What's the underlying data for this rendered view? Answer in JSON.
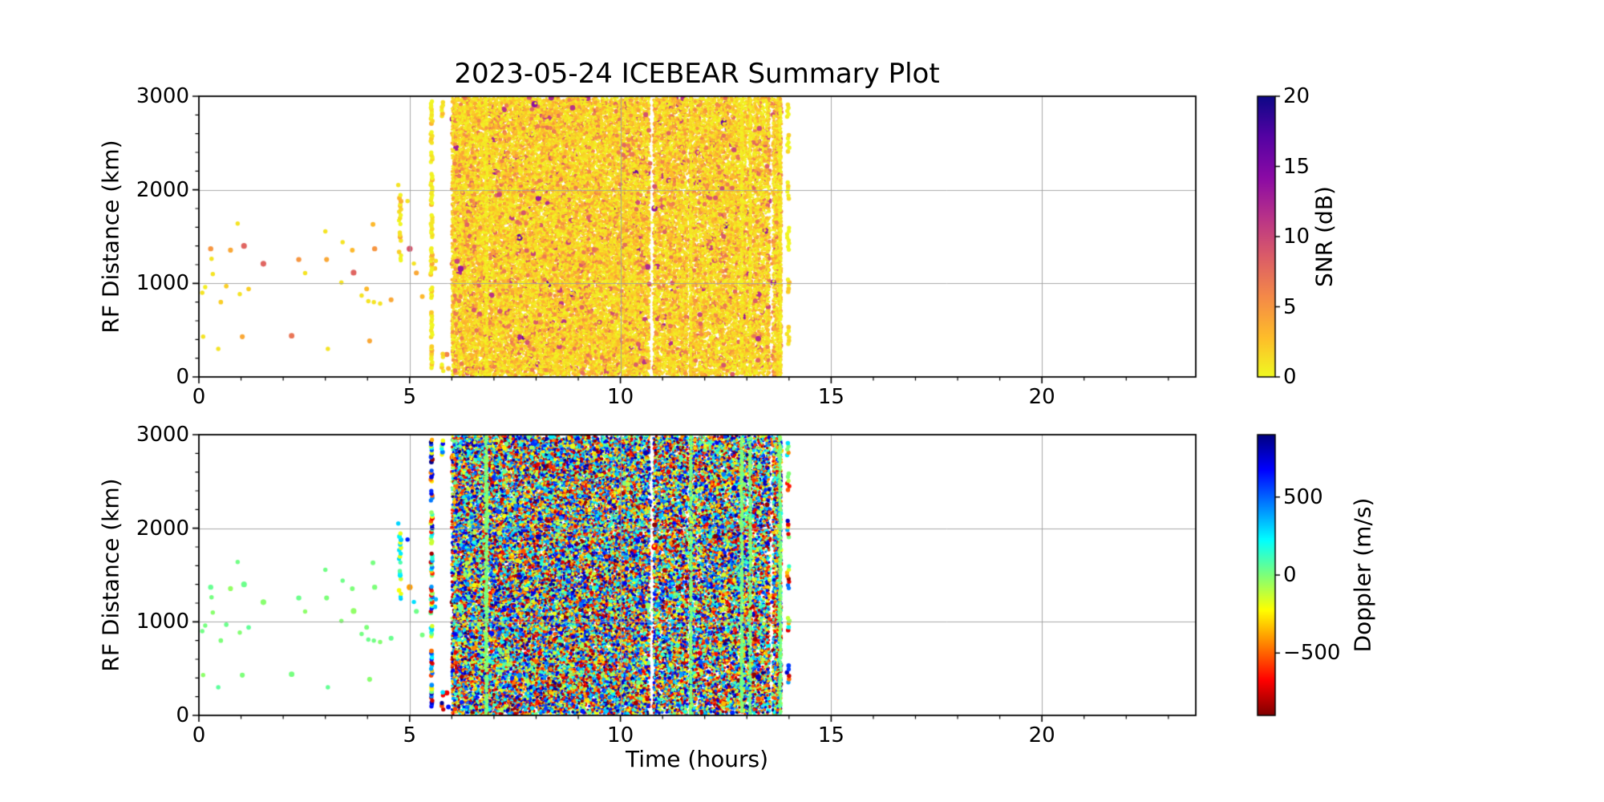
{
  "figure": {
    "background": "#ffffff",
    "grid_color": "#b0b0b0",
    "spine_color": "#000000"
  },
  "chart_data": [
    {
      "id": "snr-panel",
      "type": "scatter",
      "title": "2023-05-24 ICEBEAR Summary Plot",
      "xlabel": "",
      "ylabel": "RF Distance (km)",
      "xlim": [
        0,
        23.65
      ],
      "ylim": [
        0,
        3000
      ],
      "xticks": [
        0,
        5,
        10,
        15,
        20
      ],
      "xtick_labels": [
        "0",
        "5",
        "10",
        "15",
        "20"
      ],
      "yticks": [
        0,
        1000,
        2000,
        3000
      ],
      "ytick_labels": [
        "0",
        "1000",
        "2000",
        "3000"
      ],
      "x_minor_step": 1,
      "y_minor_step": 200,
      "grid": true,
      "legend": "none",
      "color_by": "snr",
      "colorbar": {
        "label": "SNR (dB)",
        "range": [
          0,
          20
        ],
        "ticks": [
          0,
          5,
          10,
          15,
          20
        ],
        "tick_labels": [
          "0",
          "5",
          "10",
          "15",
          "20"
        ],
        "colormap": "plasma_r"
      }
    },
    {
      "id": "doppler-panel",
      "type": "scatter",
      "title": "",
      "xlabel": "Time (hours)",
      "ylabel": "RF Distance (km)",
      "xlim": [
        0,
        23.65
      ],
      "ylim": [
        0,
        3000
      ],
      "xticks": [
        0,
        5,
        10,
        15,
        20
      ],
      "xtick_labels": [
        "0",
        "5",
        "10",
        "15",
        "20"
      ],
      "yticks": [
        0,
        1000,
        2000,
        3000
      ],
      "ytick_labels": [
        "0",
        "1000",
        "2000",
        "3000"
      ],
      "x_minor_step": 1,
      "y_minor_step": 200,
      "grid": true,
      "legend": "none",
      "color_by": "doppler",
      "colorbar": {
        "label": "Doppler (m/s)",
        "range": [
          -900,
          900
        ],
        "ticks": [
          -500,
          0,
          500
        ],
        "tick_labels": [
          "−500",
          "0",
          "500"
        ],
        "colormap": "jet_r"
      }
    }
  ],
  "scatter_source": {
    "seed": 1234,
    "sparse_points": [
      {
        "t": 0.08,
        "km": 900,
        "snr": 1,
        "dop": 20
      },
      {
        "t": 0.1,
        "km": 430,
        "snr": 1,
        "dop": -30
      },
      {
        "t": 0.15,
        "km": 960,
        "snr": 0.5,
        "dop": 10
      },
      {
        "t": 0.28,
        "km": 1370,
        "snr": 5,
        "dop": 40
      },
      {
        "t": 0.3,
        "km": 1262,
        "snr": 1,
        "dop": 12
      },
      {
        "t": 0.33,
        "km": 1100,
        "snr": 1,
        "dop": -22
      },
      {
        "t": 0.46,
        "km": 300,
        "snr": 1,
        "dop": 60
      },
      {
        "t": 0.52,
        "km": 800,
        "snr": 2,
        "dop": 0
      },
      {
        "t": 0.65,
        "km": 970,
        "snr": 2,
        "dop": 30
      },
      {
        "t": 0.75,
        "km": 1355,
        "snr": 4,
        "dop": -40
      },
      {
        "t": 0.92,
        "km": 1640,
        "snr": 1,
        "dop": 20
      },
      {
        "t": 0.97,
        "km": 885,
        "snr": 1,
        "dop": -12
      },
      {
        "t": 1.03,
        "km": 430,
        "snr": 4,
        "dop": 0
      },
      {
        "t": 1.07,
        "km": 1400,
        "snr": 8,
        "dop": 30
      },
      {
        "t": 1.18,
        "km": 940,
        "snr": 2,
        "dop": 50
      },
      {
        "t": 1.53,
        "km": 1210,
        "snr": 8,
        "dop": -20
      },
      {
        "t": 2.2,
        "km": 440,
        "snr": 7,
        "dop": 10
      },
      {
        "t": 2.37,
        "km": 1255,
        "snr": 5,
        "dop": 30
      },
      {
        "t": 2.52,
        "km": 1110,
        "snr": 1,
        "dop": -30
      },
      {
        "t": 3.0,
        "km": 1555,
        "snr": 1,
        "dop": 20
      },
      {
        "t": 3.03,
        "km": 1255,
        "snr": 4,
        "dop": 0
      },
      {
        "t": 3.06,
        "km": 300,
        "snr": 1,
        "dop": 45
      },
      {
        "t": 3.38,
        "km": 1010,
        "snr": 1,
        "dop": -12
      },
      {
        "t": 3.41,
        "km": 1440,
        "snr": 1,
        "dop": 25
      },
      {
        "t": 3.64,
        "km": 1355,
        "snr": 3,
        "dop": 0
      },
      {
        "t": 3.67,
        "km": 1115,
        "snr": 8,
        "dop": -35
      },
      {
        "t": 3.86,
        "km": 870,
        "snr": 1,
        "dop": 15
      },
      {
        "t": 3.98,
        "km": 940,
        "snr": 3,
        "dop": 0
      },
      {
        "t": 4.02,
        "km": 810,
        "snr": 1,
        "dop": 30
      },
      {
        "t": 4.05,
        "km": 385,
        "snr": 4,
        "dop": -20
      },
      {
        "t": 4.13,
        "km": 1630,
        "snr": 3,
        "dop": 10
      },
      {
        "t": 4.15,
        "km": 800,
        "snr": 1,
        "dop": 20
      },
      {
        "t": 4.17,
        "km": 1370,
        "snr": 5,
        "dop": 0
      },
      {
        "t": 4.3,
        "km": 785,
        "snr": 1,
        "dop": -15
      },
      {
        "t": 4.56,
        "km": 825,
        "snr": 4,
        "dop": 35
      },
      {
        "t": 4.73,
        "km": 2050,
        "snr": 1,
        "dop": 300
      },
      {
        "t": 4.95,
        "km": 1880,
        "snr": 1,
        "dop": 620
      },
      {
        "t": 5.0,
        "km": 1370,
        "snr": 9,
        "dop": -400
      },
      {
        "t": 5.1,
        "km": 1212,
        "snr": 1,
        "dop": 280
      },
      {
        "t": 5.16,
        "km": 1112,
        "snr": 4,
        "dop": 25
      },
      {
        "t": 5.3,
        "km": 860,
        "snr": 3,
        "dop": 10
      },
      {
        "t": 5.6,
        "km": 1160,
        "snr": 2,
        "dop": 330
      },
      {
        "t": 5.62,
        "km": 1240,
        "snr": 1,
        "dop": 350
      },
      {
        "t": 5.88,
        "km": 240,
        "snr": 6,
        "dop": -700
      },
      {
        "t": 5.92,
        "km": 90,
        "snr": 3,
        "dop": 650
      }
    ],
    "dashed_columns": [
      {
        "t": 4.77,
        "t_jitter": 0.025,
        "km_step": 30,
        "segments": [
          [
            1240,
            1330
          ],
          [
            1460,
            1570
          ],
          [
            1640,
            1960
          ]
        ],
        "dop_choices": [
          300,
          260,
          -210,
          -180,
          30,
          60
        ]
      },
      {
        "t": 5.52,
        "t_jitter": 0.02,
        "km_step": 24,
        "segments": [
          [
            90,
            330
          ],
          [
            430,
            700
          ],
          [
            840,
            970
          ],
          [
            1090,
            1400
          ],
          [
            1490,
            1730
          ],
          [
            1840,
            2190
          ],
          [
            2300,
            2410
          ],
          [
            2500,
            2630
          ],
          [
            2710,
            2960
          ]
        ],
        "dop_choices": null
      },
      {
        "t": 5.78,
        "t_jitter": 0.02,
        "km_step": 30,
        "segments": [
          [
            70,
            140
          ],
          [
            215,
            265
          ],
          [
            2790,
            2960
          ]
        ],
        "dop_choices": null
      },
      {
        "t": 13.98,
        "t_jitter": 0.03,
        "km_step": 34,
        "segments": [
          [
            360,
            530
          ],
          [
            910,
            1060
          ],
          [
            1360,
            1610
          ],
          [
            1910,
            2110
          ],
          [
            2410,
            2610
          ],
          [
            2780,
            2930
          ]
        ],
        "dop_choices": null
      }
    ],
    "dense_band": {
      "t_start": 6.0,
      "t_end": 13.82,
      "km_min": 15,
      "km_max": 2985,
      "n_points": 46000,
      "thin_after_t": 11.0,
      "thin_keep": 0.93,
      "snr_mean": 1.8,
      "snr_max": 16,
      "dop_min": -900,
      "dop_max": 900,
      "gaps": [
        {
          "t": 6.84,
          "w": 0.05,
          "keep": 0.35
        },
        {
          "t": 7.42,
          "w": 0.03,
          "keep": 0.55
        },
        {
          "t": 8.62,
          "w": 0.025,
          "keep": 0.6
        },
        {
          "t": 10.45,
          "w": 0.02,
          "keep": 0.55
        },
        {
          "t": 10.74,
          "w": 0.1,
          "keep": 0.02
        },
        {
          "t": 10.97,
          "w": 0.03,
          "keep": 0.4
        },
        {
          "t": 11.32,
          "w": 0.03,
          "keep": 0.5
        },
        {
          "t": 11.62,
          "w": 0.05,
          "keep": 0.25
        },
        {
          "t": 11.83,
          "w": 0.04,
          "keep": 0.35
        },
        {
          "t": 12.06,
          "w": 0.03,
          "keep": 0.5
        },
        {
          "t": 12.47,
          "w": 0.03,
          "keep": 0.55
        },
        {
          "t": 12.86,
          "w": 0.05,
          "keep": 0.3
        },
        {
          "t": 13.02,
          "w": 0.04,
          "keep": 0.45
        },
        {
          "t": 13.13,
          "w": 0.04,
          "keep": 0.4
        },
        {
          "t": 13.31,
          "w": 0.04,
          "keep": 0.45
        },
        {
          "t": 13.44,
          "w": 0.03,
          "keep": 0.5
        },
        {
          "t": 13.58,
          "w": 0.08,
          "keep": 0.1
        }
      ],
      "low_doppler_streaks": [
        {
          "t": 6.82,
          "w": 0.06,
          "n": 420
        },
        {
          "t": 11.67,
          "w": 0.04,
          "n": 260
        },
        {
          "t": 12.88,
          "w": 0.05,
          "n": 380
        },
        {
          "t": 13.08,
          "w": 0.04,
          "n": 300
        },
        {
          "t": 13.79,
          "w": 0.05,
          "n": 380
        }
      ]
    }
  },
  "colormaps": {
    "plasma": [
      [
        0,
        "#0d0887"
      ],
      [
        0.14,
        "#5302a3"
      ],
      [
        0.29,
        "#8b0aa5"
      ],
      [
        0.43,
        "#b83289"
      ],
      [
        0.57,
        "#db5c68"
      ],
      [
        0.71,
        "#f48849"
      ],
      [
        0.86,
        "#febd2a"
      ],
      [
        1,
        "#f0f921"
      ]
    ],
    "jet": [
      [
        0,
        "#000080"
      ],
      [
        0.125,
        "#0000ff"
      ],
      [
        0.375,
        "#00ffff"
      ],
      [
        0.5,
        "#7dff7a"
      ],
      [
        0.625,
        "#ffff00"
      ],
      [
        0.875,
        "#ff0000"
      ],
      [
        1,
        "#800000"
      ]
    ]
  }
}
